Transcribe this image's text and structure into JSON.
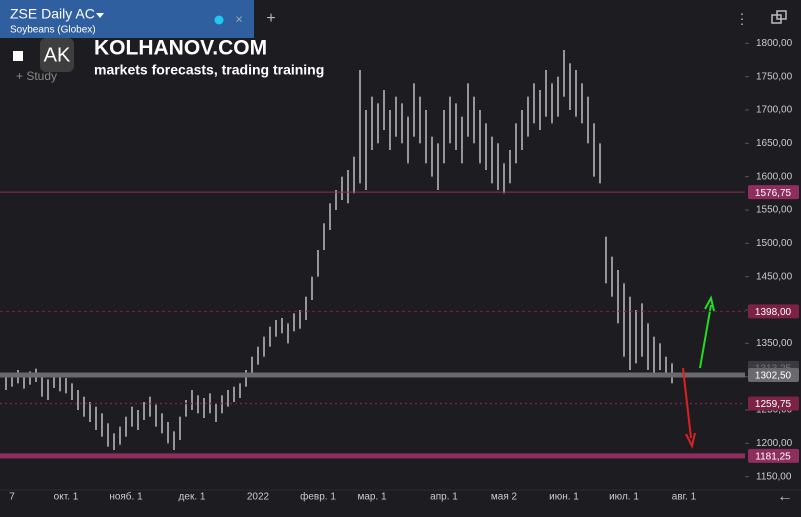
{
  "header": {
    "symbol": "ZSE Daily AC",
    "instrument": "Soybeans (Globex)",
    "study": "Study"
  },
  "watermark": {
    "logo": "AK",
    "site": "KOLHANOV.COM",
    "tagline": "markets forecasts, trading training"
  },
  "chart_data": {
    "type": "ohlc",
    "categories": [
      null,
      "7",
      null,
      null,
      null,
      null,
      null,
      null,
      null,
      null,
      "окт. 1",
      null,
      null,
      null,
      null,
      null,
      null,
      null,
      null,
      null,
      "нояб. 1",
      null,
      null,
      null,
      null,
      null,
      null,
      null,
      null,
      null,
      null,
      "дек. 1",
      null,
      null,
      null,
      null,
      null,
      null,
      null,
      null,
      null,
      null,
      "2022",
      null,
      null,
      null,
      null,
      null,
      null,
      null,
      null,
      null,
      "февр. 1",
      null,
      null,
      null,
      null,
      null,
      null,
      null,
      null,
      "мар. 1",
      null,
      null,
      null,
      null,
      null,
      null,
      null,
      null,
      null,
      null,
      null,
      "апр. 1",
      null,
      null,
      null,
      null,
      null,
      null,
      null,
      null,
      null,
      "мая 2",
      null,
      null,
      null,
      null,
      null,
      null,
      null,
      null,
      null,
      "июн. 1",
      null,
      null,
      null,
      null,
      null,
      null,
      null,
      null,
      null,
      "июл. 1",
      null,
      null,
      null,
      null,
      null,
      null,
      null,
      null,
      null,
      "авг. 1"
    ],
    "high": [
      1300,
      1305,
      1310,
      1303,
      1308,
      1312,
      1300,
      1296,
      1305,
      1300,
      1298,
      1290,
      1280,
      1270,
      1262,
      1255,
      1245,
      1230,
      1215,
      1225,
      1240,
      1255,
      1250,
      1262,
      1270,
      1258,
      1245,
      1232,
      1218,
      1240,
      1265,
      1280,
      1272,
      1268,
      1275,
      1260,
      1272,
      1280,
      1285,
      1290,
      1310,
      1330,
      1345,
      1360,
      1375,
      1385,
      1388,
      1380,
      1395,
      1400,
      1420,
      1450,
      1490,
      1530,
      1560,
      1580,
      1600,
      1610,
      1630,
      1760,
      1700,
      1720,
      1710,
      1730,
      1700,
      1720,
      1710,
      1690,
      1740,
      1720,
      1700,
      1660,
      1650,
      1700,
      1720,
      1710,
      1690,
      1740,
      1720,
      1700,
      1680,
      1660,
      1650,
      1620,
      1640,
      1680,
      1700,
      1720,
      1740,
      1730,
      1760,
      1740,
      1750,
      1790,
      1770,
      1760,
      1740,
      1720,
      1680,
      1650,
      1510,
      1480,
      1460,
      1440,
      1420,
      1400,
      1410,
      1380,
      1360,
      1350,
      1330,
      1320,
      null,
      null
    ],
    "low": [
      1280,
      1285,
      1290,
      1282,
      1288,
      1292,
      1270,
      1265,
      1283,
      1278,
      1275,
      1265,
      1250,
      1240,
      1232,
      1220,
      1210,
      1195,
      1190,
      1198,
      1210,
      1225,
      1220,
      1235,
      1240,
      1225,
      1215,
      1200,
      1190,
      1205,
      1240,
      1250,
      1245,
      1238,
      1245,
      1232,
      1245,
      1255,
      1262,
      1268,
      1285,
      1300,
      1318,
      1330,
      1345,
      1360,
      1365,
      1350,
      1368,
      1372,
      1385,
      1415,
      1450,
      1490,
      1520,
      1550,
      1565,
      1560,
      1575,
      1590,
      1580,
      1640,
      1650,
      1670,
      1640,
      1660,
      1650,
      1620,
      1660,
      1650,
      1620,
      1600,
      1580,
      1620,
      1650,
      1640,
      1620,
      1660,
      1650,
      1620,
      1610,
      1590,
      1580,
      1575,
      1590,
      1620,
      1640,
      1660,
      1680,
      1670,
      1690,
      1680,
      1690,
      1720,
      1700,
      1690,
      1680,
      1650,
      1600,
      1590,
      1440,
      1420,
      1380,
      1330,
      1310,
      1320,
      1330,
      1310,
      1300,
      1310,
      1300,
      1290,
      null,
      null
    ],
    "color": "#d8d8d8",
    "ylim": [
      1130,
      1865
    ],
    "yticks": [
      {
        "value": 1150,
        "label": "1150,00"
      },
      {
        "value": 1200,
        "label": "1200,00"
      },
      {
        "value": 1250,
        "label": "1250,00"
      },
      {
        "value": 1300,
        "label": "1300,00"
      },
      {
        "value": 1350,
        "label": "1350,00"
      },
      {
        "value": 1400,
        "label": "1400,00"
      },
      {
        "value": 1450,
        "label": "1450,00"
      },
      {
        "value": 1500,
        "label": "1500,00"
      },
      {
        "value": 1550,
        "label": "1550,00"
      },
      {
        "value": 1600,
        "label": "1600,00"
      },
      {
        "value": 1650,
        "label": "1650,00"
      },
      {
        "value": 1700,
        "label": "1700,00"
      },
      {
        "value": 1750,
        "label": "1750,00"
      },
      {
        "value": 1800,
        "label": "1800,00"
      }
    ],
    "grid": false,
    "levels": [
      {
        "value": 1576.75,
        "label": "1576,75",
        "color": "#8e2d5e",
        "style": "solid"
      },
      {
        "value": 1398.0,
        "label": "1398,00",
        "color": "#7c2244",
        "style": "dashed"
      },
      {
        "value": 1313.25,
        "label": "1313,25",
        "color": "#3a3a40",
        "style": "hidden"
      },
      {
        "value": 1302.5,
        "label": "1302,50",
        "color": "#6a6a6e",
        "style": "thick"
      },
      {
        "value": 1259.75,
        "label": "1259,75",
        "color": "#7c2244",
        "style": "dotted"
      },
      {
        "value": 1181.25,
        "label": "1181,25",
        "color": "#8e2d5e",
        "style": "thick"
      }
    ]
  }
}
